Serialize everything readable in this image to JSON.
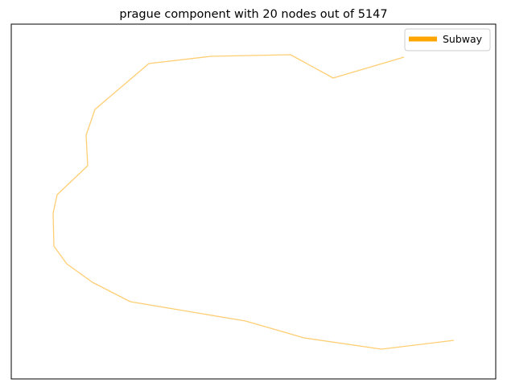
{
  "chart_data": {
    "type": "line",
    "title": "prague component with 20 nodes out of 5147",
    "xlabel": "",
    "ylabel": "",
    "axes_ticks": false,
    "grid": false,
    "legend_position": "top-right",
    "series": [
      {
        "name": "Subway",
        "color": "#FFA500",
        "points": [
          [
            502,
            71
          ],
          [
            414,
            97
          ],
          [
            361,
            68
          ],
          [
            262,
            70
          ],
          [
            185,
            79
          ],
          [
            118,
            136
          ],
          [
            107,
            168
          ],
          [
            109,
            206
          ],
          [
            71,
            242
          ],
          [
            66,
            265
          ],
          [
            67,
            306
          ],
          [
            83,
            328
          ],
          [
            115,
            351
          ],
          [
            162,
            375
          ],
          [
            305,
            399
          ],
          [
            378,
            420
          ],
          [
            474,
            434
          ],
          [
            564,
            423
          ]
        ]
      }
    ]
  }
}
